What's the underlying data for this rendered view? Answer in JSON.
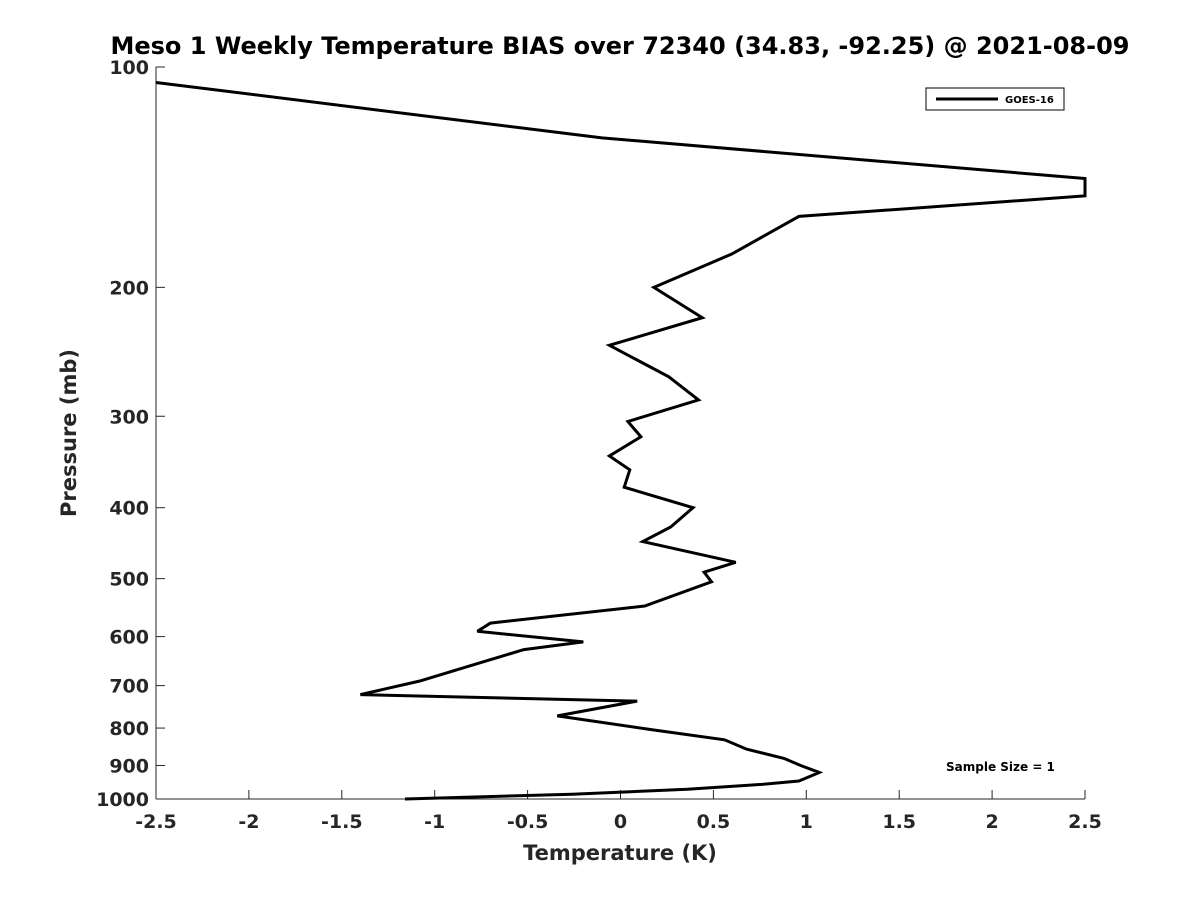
{
  "chart_data": {
    "type": "line",
    "title": "Meso 1 Weekly Temperature BIAS over 72340 (34.83, -92.25) @ 2021-08-09",
    "xlabel": "Temperature (K)",
    "ylabel": "Pressure (mb)",
    "xlim": [
      -2.5,
      2.5
    ],
    "ylim": [
      100,
      1000
    ],
    "y_scale": "log",
    "y_reversed": true,
    "xticks": [
      "-2.5",
      "-2",
      "-1.5",
      "-1",
      "-0.5",
      "0",
      "0.5",
      "1",
      "1.5",
      "2",
      "2.5"
    ],
    "yticks": [
      "100",
      "200",
      "300",
      "400",
      "500",
      "600",
      "700",
      "800",
      "900",
      "1000"
    ],
    "grid": false,
    "legend_position": "top-right",
    "annotation": "Sample Size = 1",
    "series": [
      {
        "name": "GOES-16",
        "color": "#000000",
        "x": [
          -2.5,
          -0.1,
          2.5,
          2.5,
          0.96,
          0.6,
          0.18,
          0.44,
          -0.06,
          0.26,
          0.42,
          0.04,
          0.11,
          -0.06,
          0.05,
          0.02,
          0.39,
          0.27,
          0.12,
          0.62,
          0.45,
          0.49,
          0.13,
          -0.7,
          -0.77,
          -0.2,
          -0.52,
          -0.83,
          -1.08,
          -1.4,
          0.09,
          -0.34,
          0.18,
          0.56,
          0.68,
          0.88,
          0.97,
          1.07,
          0.96,
          0.76,
          0.36,
          -0.26,
          -1.16
        ],
        "y": [
          105,
          125,
          142,
          150,
          160,
          180,
          200,
          220,
          240,
          265,
          285,
          305,
          320,
          340,
          355,
          375,
          400,
          425,
          445,
          475,
          490,
          505,
          545,
          575,
          590,
          610,
          625,
          660,
          690,
          720,
          735,
          770,
          805,
          830,
          855,
          880,
          900,
          920,
          945,
          955,
          970,
          985,
          1000
        ]
      }
    ]
  }
}
